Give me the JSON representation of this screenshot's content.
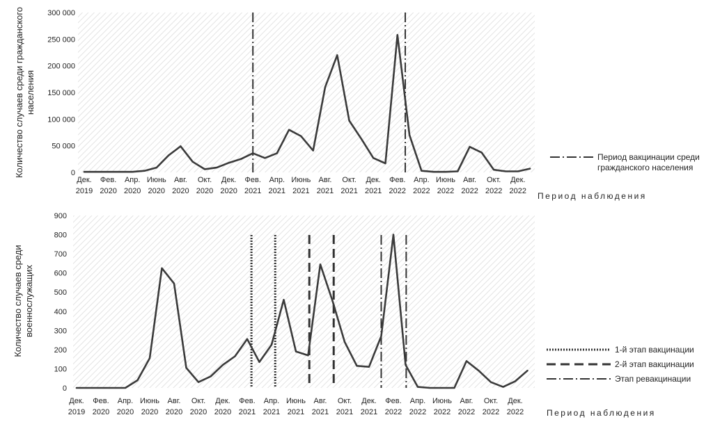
{
  "chart_data": [
    {
      "type": "line",
      "ylabel": [
        "Количество случаев среди гражданского",
        "населения"
      ],
      "xlabel": "Период наблюдения",
      "ylim": [
        0,
        300000
      ],
      "yticks": [
        "0",
        "50 000",
        "100 000",
        "150 000",
        "200 000",
        "250 000",
        "300 000"
      ],
      "yticks_values": [
        0,
        50000,
        100000,
        150000,
        200000,
        250000,
        300000
      ],
      "x_tick_labels": [
        [
          "Дек.",
          "2019"
        ],
        [
          "Фев.",
          "2020"
        ],
        [
          "Апр.",
          "2020"
        ],
        [
          "Июнь",
          "2020"
        ],
        [
          "Авг.",
          "2020"
        ],
        [
          "Окт.",
          "2020"
        ],
        [
          "Дек.",
          "2020"
        ],
        [
          "Фев.",
          "2021"
        ],
        [
          "Апр.",
          "2021"
        ],
        [
          "Июнь",
          "2021"
        ],
        [
          "Авг.",
          "2021"
        ],
        [
          "Окт.",
          "2021"
        ],
        [
          "Дек.",
          "2021"
        ],
        [
          "Фев.",
          "2022"
        ],
        [
          "Апр.",
          "2022"
        ],
        [
          "Июнь",
          "2022"
        ],
        [
          "Авг.",
          "2022"
        ],
        [
          "Окт.",
          "2022"
        ],
        [
          "Дек.",
          "2022"
        ]
      ],
      "series": [
        {
          "values": [
            1000,
            1000,
            1000,
            1000,
            1000,
            3000,
            9000,
            32000,
            49000,
            20000,
            6000,
            9000,
            18000,
            25000,
            36000,
            27000,
            36000,
            80000,
            68000,
            41000,
            160000,
            220000,
            97000,
            63000,
            27000,
            17000,
            258000,
            70000,
            3000,
            1000,
            1000,
            2000,
            48000,
            37000,
            5000,
            2000,
            2000,
            7000
          ]
        }
      ],
      "vertical_markers": [
        {
          "legend": 0,
          "month_index": 14.0
        },
        {
          "legend": 0,
          "month_index": 26.65
        }
      ],
      "legend": [
        {
          "label": [
            "Период вакцинации среди",
            "гражданского населения"
          ],
          "style": "dash-dot"
        }
      ]
    },
    {
      "type": "line",
      "ylabel": [
        "Количество случаев среди",
        "военнослужащих"
      ],
      "xlabel": "Период наблюдения",
      "ylim": [
        0,
        900
      ],
      "yticks": [
        "0",
        "100",
        "200",
        "300",
        "400",
        "500",
        "600",
        "700",
        "800",
        "900"
      ],
      "yticks_values": [
        0,
        100,
        200,
        300,
        400,
        500,
        600,
        700,
        800,
        900
      ],
      "x_tick_labels": [
        [
          "Дек.",
          "2019"
        ],
        [
          "Фев.",
          "2020"
        ],
        [
          "Апр.",
          "2020"
        ],
        [
          "Июнь",
          "2020"
        ],
        [
          "Авг.",
          "2020"
        ],
        [
          "Окт.",
          "2020"
        ],
        [
          "Дек.",
          "2020"
        ],
        [
          "Фев.",
          "2021"
        ],
        [
          "Апр.",
          "2021"
        ],
        [
          "Июнь",
          "2021"
        ],
        [
          "Авг.",
          "2021"
        ],
        [
          "Окт.",
          "2021"
        ],
        [
          "Дек.",
          "2021"
        ],
        [
          "Фев.",
          "2022"
        ],
        [
          "Апр.",
          "2022"
        ],
        [
          "Июнь",
          "2022"
        ],
        [
          "Авг.",
          "2022"
        ],
        [
          "Окт.",
          "2022"
        ],
        [
          "Дек.",
          "2022"
        ]
      ],
      "series": [
        {
          "values": [
            0,
            0,
            0,
            0,
            0,
            40,
            155,
            625,
            545,
            105,
            30,
            60,
            120,
            165,
            255,
            135,
            225,
            460,
            190,
            170,
            645,
            455,
            240,
            115,
            110,
            270,
            800,
            120,
            5,
            0,
            0,
            0,
            140,
            90,
            30,
            5,
            35,
            90
          ]
        }
      ],
      "vertical_markers": [
        {
          "legend": 0,
          "month_index": 14.35
        },
        {
          "legend": 0,
          "month_index": 16.3
        },
        {
          "legend": 1,
          "month_index": 19.1
        },
        {
          "legend": 1,
          "month_index": 21.1
        },
        {
          "legend": 2,
          "month_index": 25.0
        },
        {
          "legend": 2,
          "month_index": 27.05
        }
      ],
      "legend": [
        {
          "label": "1-й этап вакцинации",
          "style": "dotted"
        },
        {
          "label": "2-й этап вакцинации",
          "style": "dashed"
        },
        {
          "label": "Этап ревакцинации",
          "style": "dash-dot"
        }
      ]
    }
  ]
}
